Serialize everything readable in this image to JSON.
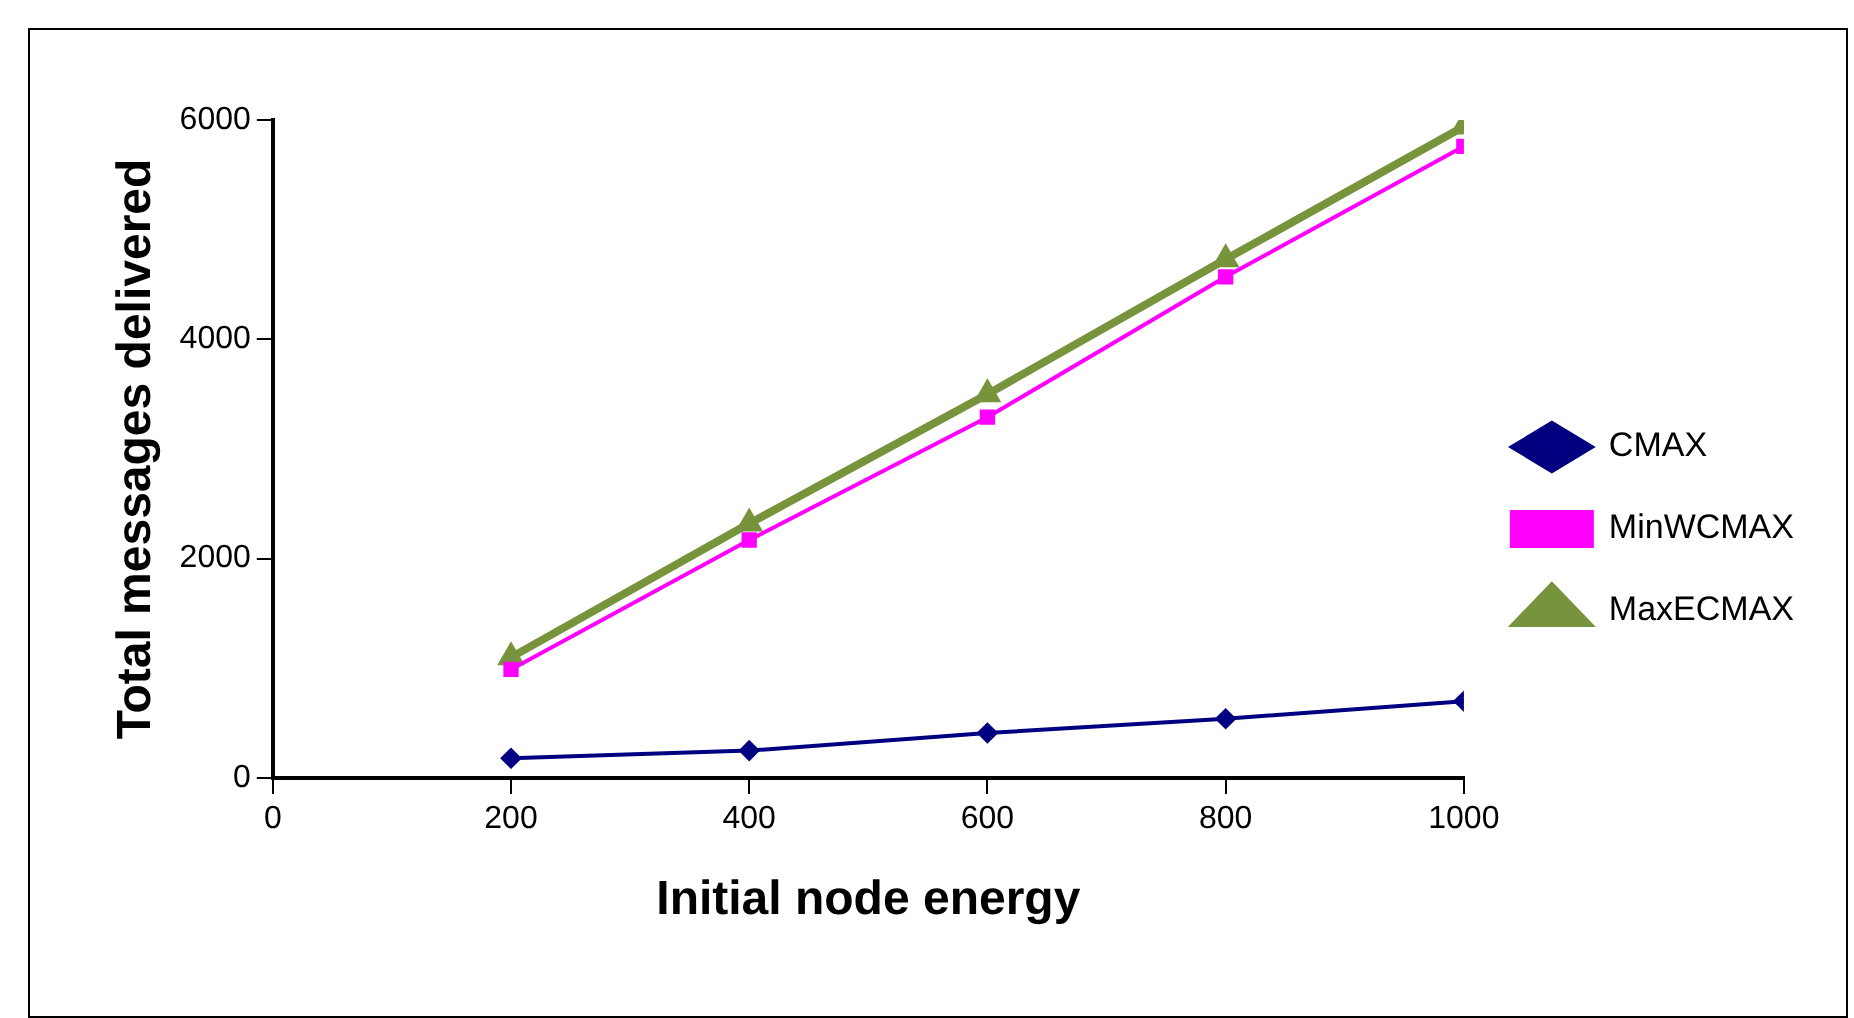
{
  "chart_data": {
    "type": "line",
    "xlabel": "Initial node energy",
    "ylabel": "Total messages delivered",
    "x": [
      200,
      400,
      600,
      800,
      1000
    ],
    "series": [
      {
        "name": "CMAX",
        "color": "#000080",
        "values": [
          180,
          250,
          410,
          540,
          700
        ],
        "marker": "diamond"
      },
      {
        "name": "MinWCMAX",
        "color": "#ff00ff",
        "values": [
          990,
          2170,
          3290,
          4570,
          5760
        ],
        "marker": "square"
      },
      {
        "name": "MaxECMAX",
        "color": "#77933c",
        "values": [
          1100,
          2320,
          3500,
          4730,
          5940
        ],
        "marker": "triangle"
      }
    ],
    "xlim": [
      0,
      1000
    ],
    "xticks": [
      0,
      200,
      400,
      600,
      800,
      1000
    ],
    "ylim": [
      0,
      6000
    ],
    "yticks": [
      0,
      2000,
      4000,
      6000
    ],
    "grid": false,
    "legend": "right",
    "line_style": "solid"
  }
}
